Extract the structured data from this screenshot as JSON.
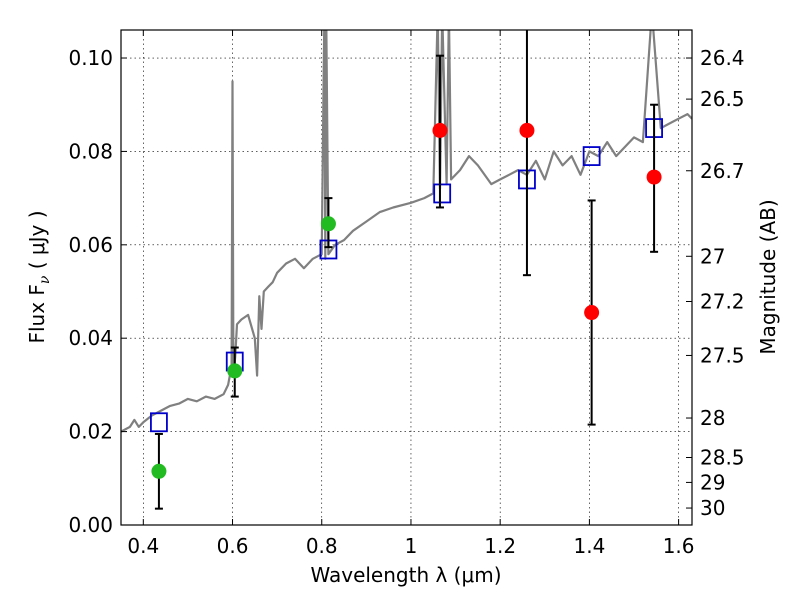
{
  "chart_data": {
    "type": "scatter",
    "title": "",
    "xlabel": "Wavelength  λ (μm)",
    "ylabel": "Flux  F",
    "ylabel_sub": "ν",
    "ylabel_units": " ( μJy )",
    "ylabel_right": "Magnitude (AB)",
    "xlim": [
      0.35,
      1.63
    ],
    "ylim": [
      0.0,
      0.106
    ],
    "grid": true,
    "x_ticks": [
      0.4,
      0.6,
      0.8,
      1.0,
      1.2,
      1.4,
      1.6
    ],
    "x_tick_labels": [
      "0.4",
      "0.6",
      "0.8",
      "1",
      "1.2",
      "1.4",
      "1.6"
    ],
    "y_ticks": [
      0.0,
      0.02,
      0.04,
      0.06,
      0.08,
      0.1
    ],
    "y_tick_labels": [
      "0.00",
      "0.02",
      "0.04",
      "0.06",
      "0.08",
      "0.10"
    ],
    "right_ticks": [
      {
        "label": "26.4",
        "value": 26.4
      },
      {
        "label": "26.5",
        "value": 26.5
      },
      {
        "label": "26.7",
        "value": 26.7
      },
      {
        "label": "27",
        "value": 27.0
      },
      {
        "label": "27.2",
        "value": 27.2
      },
      {
        "label": "27.5",
        "value": 27.5
      },
      {
        "label": "28",
        "value": 28.0
      },
      {
        "label": "28.5",
        "value": 28.5
      },
      {
        "label": "29",
        "value": 29.0
      },
      {
        "label": "30",
        "value": 30.0
      }
    ],
    "series": [
      {
        "kind": "line",
        "color": "#808080",
        "x": [
          0.35,
          0.37,
          0.38,
          0.39,
          0.4,
          0.42,
          0.44,
          0.46,
          0.48,
          0.5,
          0.52,
          0.54,
          0.56,
          0.58,
          0.59,
          0.598,
          0.6,
          0.602,
          0.606,
          0.61,
          0.62,
          0.635,
          0.65,
          0.655,
          0.66,
          0.665,
          0.67,
          0.68,
          0.69,
          0.7,
          0.72,
          0.74,
          0.76,
          0.78,
          0.8,
          0.806,
          0.808,
          0.81,
          0.815,
          0.83,
          0.85,
          0.87,
          0.9,
          0.93,
          0.96,
          1.0,
          1.03,
          1.05,
          1.06,
          1.065,
          1.07,
          1.08,
          1.085,
          1.09,
          1.11,
          1.13,
          1.15,
          1.18,
          1.2,
          1.22,
          1.24,
          1.26,
          1.28,
          1.3,
          1.32,
          1.34,
          1.36,
          1.38,
          1.4,
          1.42,
          1.44,
          1.46,
          1.48,
          1.5,
          1.52,
          1.54,
          1.56,
          1.58,
          1.6,
          1.62,
          1.63
        ],
        "values": [
          0.02,
          0.021,
          0.0225,
          0.021,
          0.022,
          0.0235,
          0.0245,
          0.0255,
          0.026,
          0.027,
          0.0265,
          0.0275,
          0.027,
          0.028,
          0.03,
          0.034,
          0.095,
          0.032,
          0.036,
          0.043,
          0.044,
          0.045,
          0.04,
          0.032,
          0.049,
          0.042,
          0.05,
          0.051,
          0.052,
          0.054,
          0.056,
          0.057,
          0.055,
          0.057,
          0.058,
          0.11,
          0.057,
          0.11,
          0.058,
          0.06,
          0.061,
          0.063,
          0.065,
          0.067,
          0.068,
          0.069,
          0.07,
          0.071,
          0.11,
          0.072,
          0.11,
          0.073,
          0.11,
          0.074,
          0.076,
          0.079,
          0.077,
          0.073,
          0.074,
          0.075,
          0.076,
          0.075,
          0.078,
          0.074,
          0.08,
          0.077,
          0.079,
          0.075,
          0.08,
          0.079,
          0.082,
          0.079,
          0.081,
          0.083,
          0.082,
          0.11,
          0.085,
          0.086,
          0.087,
          0.088,
          0.087
        ]
      },
      {
        "kind": "squares",
        "color": "#0000cc",
        "x": [
          0.435,
          0.605,
          0.815,
          1.07,
          1.26,
          1.405,
          1.545
        ],
        "values": [
          0.022,
          0.035,
          0.059,
          0.071,
          0.074,
          0.079,
          0.085
        ]
      },
      {
        "kind": "points",
        "color": "#22bb22",
        "x": [
          0.435,
          0.605,
          0.815
        ],
        "values": [
          0.0115,
          0.033,
          0.0645
        ],
        "err_low": [
          0.0035,
          0.0275,
          0.0595
        ],
        "err_high": [
          0.0195,
          0.038,
          0.07
        ]
      },
      {
        "kind": "points",
        "color": "#ff0000",
        "x": [
          1.065,
          1.26,
          1.405,
          1.545
        ],
        "values": [
          0.0845,
          0.0845,
          0.0455,
          0.0745
        ],
        "err_low": [
          0.068,
          0.0535,
          0.0215,
          0.0585
        ],
        "err_high": [
          0.1005,
          0.115,
          0.0695,
          0.09
        ]
      }
    ]
  }
}
